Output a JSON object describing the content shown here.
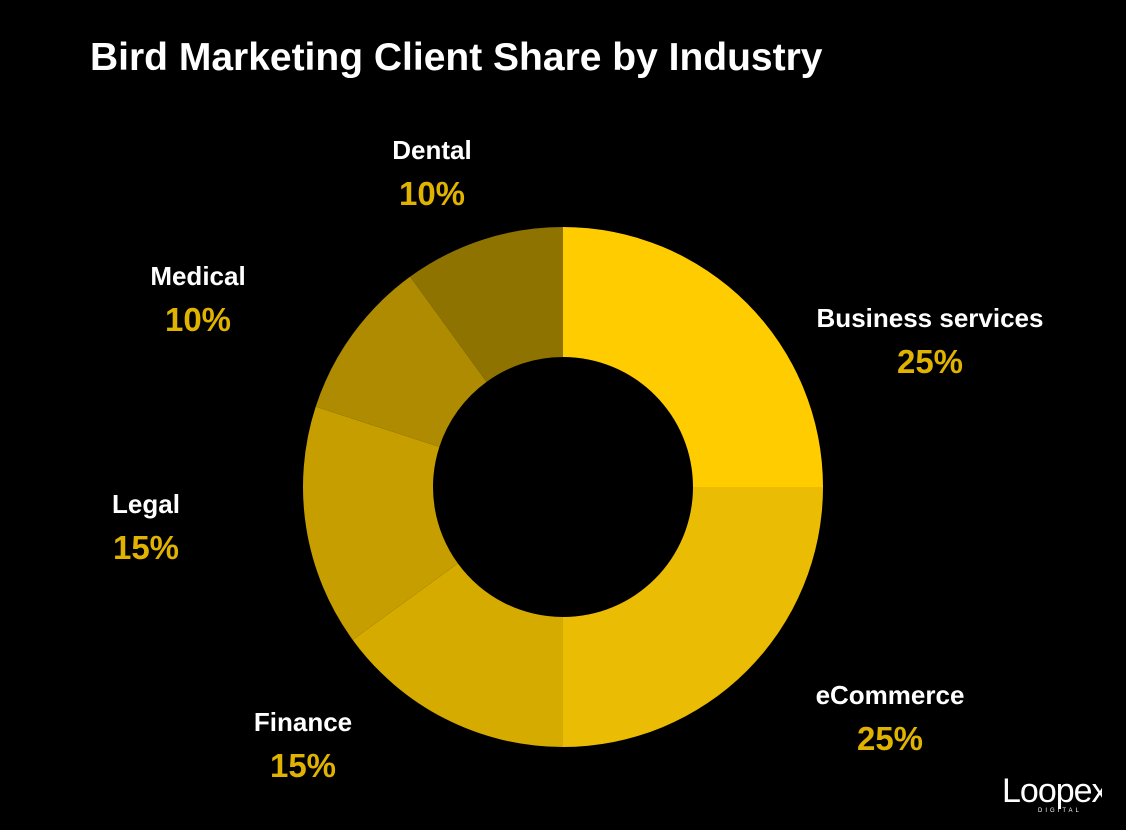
{
  "chart_data": {
    "type": "pie",
    "title": "Bird Marketing Client Share by Industry",
    "slices": [
      {
        "label": "Business services",
        "value": 25,
        "value_label": "25%",
        "color": "#FFCC00"
      },
      {
        "label": "eCommerce",
        "value": 25,
        "value_label": "25%",
        "color": "#EBBC04"
      },
      {
        "label": "Finance",
        "value": 15,
        "value_label": "15%",
        "color": "#D6AB00"
      },
      {
        "label": "Legal",
        "value": 15,
        "value_label": "15%",
        "color": "#C69E00"
      },
      {
        "label": "Medical",
        "value": 10,
        "value_label": "10%",
        "color": "#AE8B00"
      },
      {
        "label": "Dental",
        "value": 10,
        "value_label": "10%",
        "color": "#8F7300"
      }
    ],
    "label_color": "#FFFFFF",
    "percent_color": "#E0B300",
    "background": "#000000"
  },
  "logo": {
    "word": "Loopex",
    "sub": "DIGITAL"
  }
}
